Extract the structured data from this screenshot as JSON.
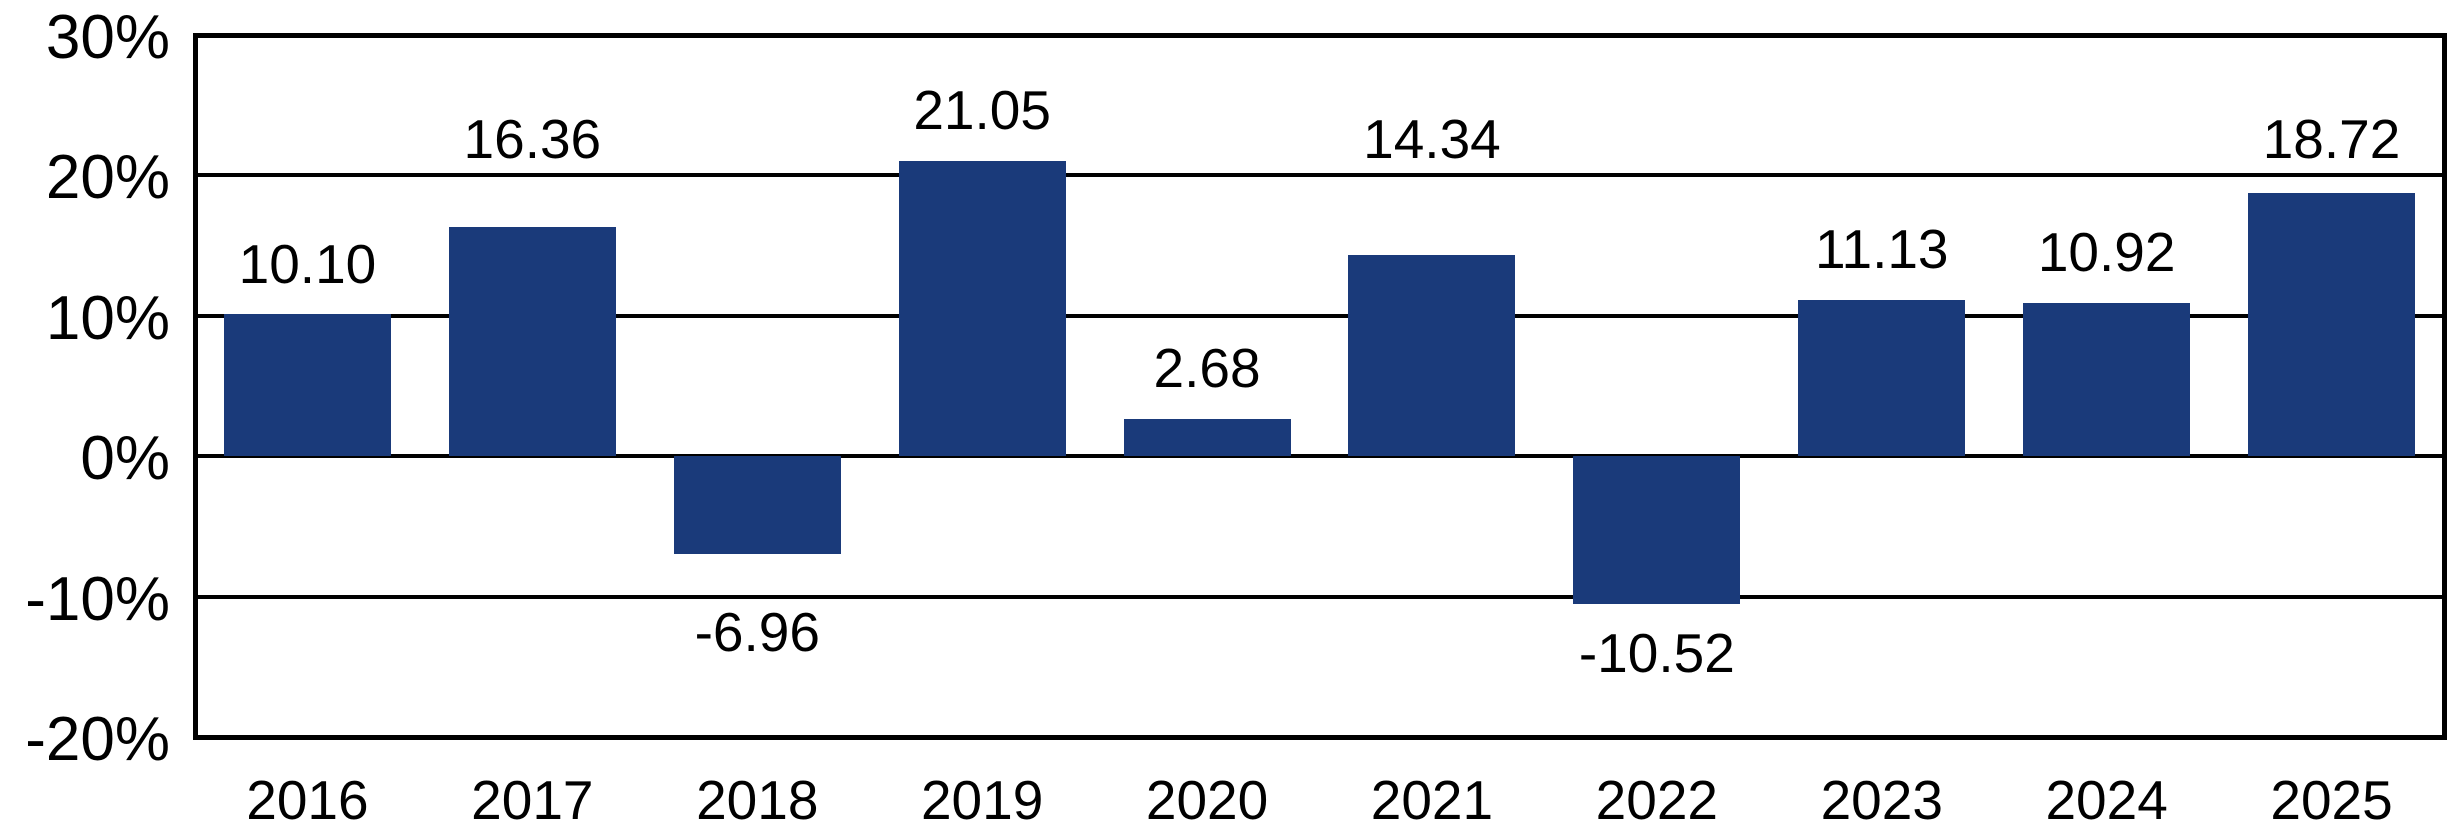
{
  "chart_data": {
    "type": "bar",
    "title": "",
    "xlabel": "",
    "ylabel": "",
    "categories": [
      "2016",
      "2017",
      "2018",
      "2019",
      "2020",
      "2021",
      "2022",
      "2023",
      "2024",
      "2025"
    ],
    "values": [
      10.1,
      16.36,
      -6.96,
      21.05,
      2.68,
      14.34,
      -10.52,
      11.13,
      10.92,
      18.72
    ],
    "value_labels": [
      "10.10",
      "16.36",
      "-6.96",
      "21.05",
      "2.68",
      "14.34",
      "-10.52",
      "11.13",
      "10.92",
      "18.72"
    ],
    "y_ticks": [
      {
        "value": 30,
        "label": "30%"
      },
      {
        "value": 20,
        "label": "20%"
      },
      {
        "value": 10,
        "label": "10%"
      },
      {
        "value": 0,
        "label": "0%"
      },
      {
        "value": -10,
        "label": "-10%"
      },
      {
        "value": -20,
        "label": "-20%"
      }
    ],
    "ylim": [
      -20,
      30
    ],
    "grid": true,
    "legend_position": "none",
    "bar_color": "#1a3a7a",
    "axis_color": "#000000",
    "text_color": "#000000",
    "background_color": "#ffffff"
  }
}
